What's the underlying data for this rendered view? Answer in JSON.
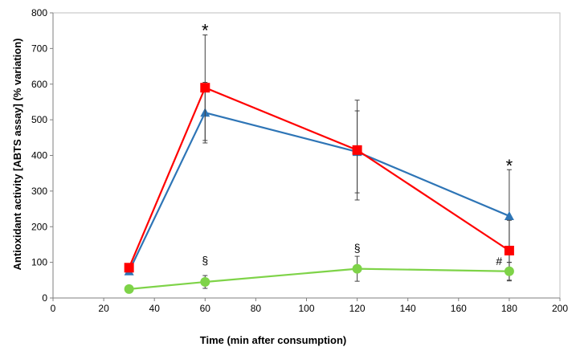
{
  "chart_data": {
    "type": "line",
    "title": "",
    "xlabel": "Time (min after consumption)",
    "ylabel": "Antioxidant activity [ABTS assay] (% variation)",
    "xlim": [
      0,
      200
    ],
    "ylim": [
      0,
      800
    ],
    "x_ticks": [
      0,
      20,
      40,
      60,
      80,
      100,
      120,
      140,
      160,
      180,
      200
    ],
    "y_ticks": [
      0,
      100,
      200,
      300,
      400,
      500,
      600,
      700,
      800
    ],
    "grid": false,
    "legend": "none",
    "series": [
      {
        "color": "#2e75b6",
        "marker": "triangle",
        "x": [
          30,
          60,
          120,
          180
        ],
        "y": [
          75,
          520,
          410,
          230
        ],
        "err": [
          null,
          85,
          115,
          130
        ]
      },
      {
        "color": "#ff0000",
        "marker": "square",
        "x": [
          30,
          60,
          120,
          180
        ],
        "y": [
          85,
          590,
          415,
          133
        ],
        "err": [
          null,
          148,
          140,
          85
        ]
      },
      {
        "color": "#7ed348",
        "marker": "circle",
        "x": [
          30,
          60,
          120,
          180
        ],
        "y": [
          25,
          45,
          82,
          75
        ],
        "err": [
          null,
          18,
          35,
          25
        ]
      }
    ],
    "annotations": [
      {
        "text": "*",
        "x": 60,
        "y": 765,
        "size": "large"
      },
      {
        "text": "§",
        "x": 60,
        "y": 95,
        "size": "small"
      },
      {
        "text": "§",
        "x": 120,
        "y": 130,
        "size": "small"
      },
      {
        "text": "*",
        "x": 180,
        "y": 385,
        "size": "large"
      },
      {
        "text": "#",
        "x": 176,
        "y": 92,
        "size": "small"
      }
    ]
  }
}
